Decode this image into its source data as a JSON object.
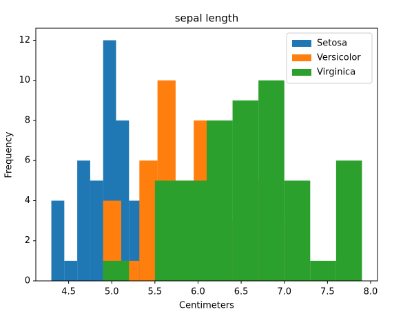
{
  "chart_data": {
    "type": "histogram",
    "title": "sepal length",
    "xlabel": "Centimeters",
    "ylabel": "Frequency",
    "series": [
      {
        "name": "Setosa",
        "color": "#1f77b4",
        "bins": [
          4.3,
          4.45,
          4.6,
          4.75,
          4.9,
          5.05,
          5.2,
          5.35,
          5.5,
          5.65,
          5.8
        ],
        "values": [
          4,
          1,
          6,
          5,
          12,
          8,
          4,
          5,
          2,
          3
        ]
      },
      {
        "name": "Versicolor",
        "color": "#ff7f0e",
        "bins": [
          4.9,
          5.11,
          5.32,
          5.53,
          5.74,
          5.95,
          6.16,
          6.37,
          6.58,
          6.79,
          7.0
        ],
        "values": [
          4,
          1,
          6,
          10,
          5,
          8,
          5,
          3,
          5,
          3
        ]
      },
      {
        "name": "Virginica",
        "color": "#2ca02c",
        "bins": [
          4.9,
          5.2,
          5.5,
          5.8,
          6.1,
          6.4,
          6.7,
          7.0,
          7.3,
          7.6,
          7.9
        ],
        "values": [
          1,
          0,
          5,
          5,
          8,
          9,
          10,
          5,
          1,
          6
        ]
      }
    ],
    "xlim": [
      4.12,
      8.08
    ],
    "ylim": [
      0,
      12.6
    ],
    "xticks": [
      4.5,
      {
        "value": 5,
        "label": "5.0"
      },
      5.5,
      {
        "value": 6,
        "label": "6.0"
      },
      6.5,
      {
        "value": 7,
        "label": "7.0"
      },
      7.5,
      {
        "value": 8,
        "label": "8.0"
      }
    ],
    "yticks": [
      0,
      2,
      4,
      6,
      8,
      10,
      12
    ],
    "legend": "upper right"
  }
}
